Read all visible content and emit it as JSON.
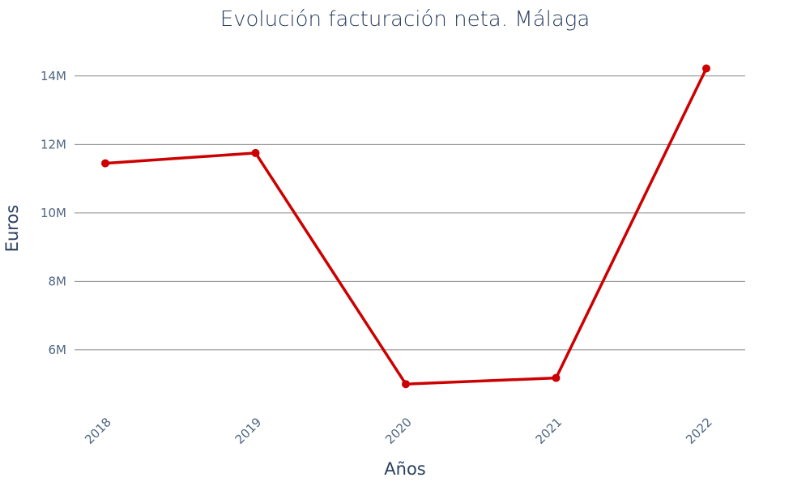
{
  "chart_data": {
    "type": "line",
    "title": "Evolución facturación neta. Málaga",
    "xlabel": "Años",
    "ylabel": "Euros",
    "categories": [
      "2018",
      "2019",
      "2020",
      "2021",
      "2022"
    ],
    "series": [
      {
        "values": [
          11450000,
          11750000,
          5000000,
          5180000,
          14220000
        ],
        "color": "#cc0000"
      }
    ],
    "y_ticks": [
      6000000,
      8000000,
      10000000,
      12000000,
      14000000
    ],
    "y_tick_labels": [
      "6M",
      "8M",
      "10M",
      "12M",
      "14M"
    ],
    "ylim": [
      4200000,
      14800000
    ],
    "grid": true,
    "legend": false
  }
}
